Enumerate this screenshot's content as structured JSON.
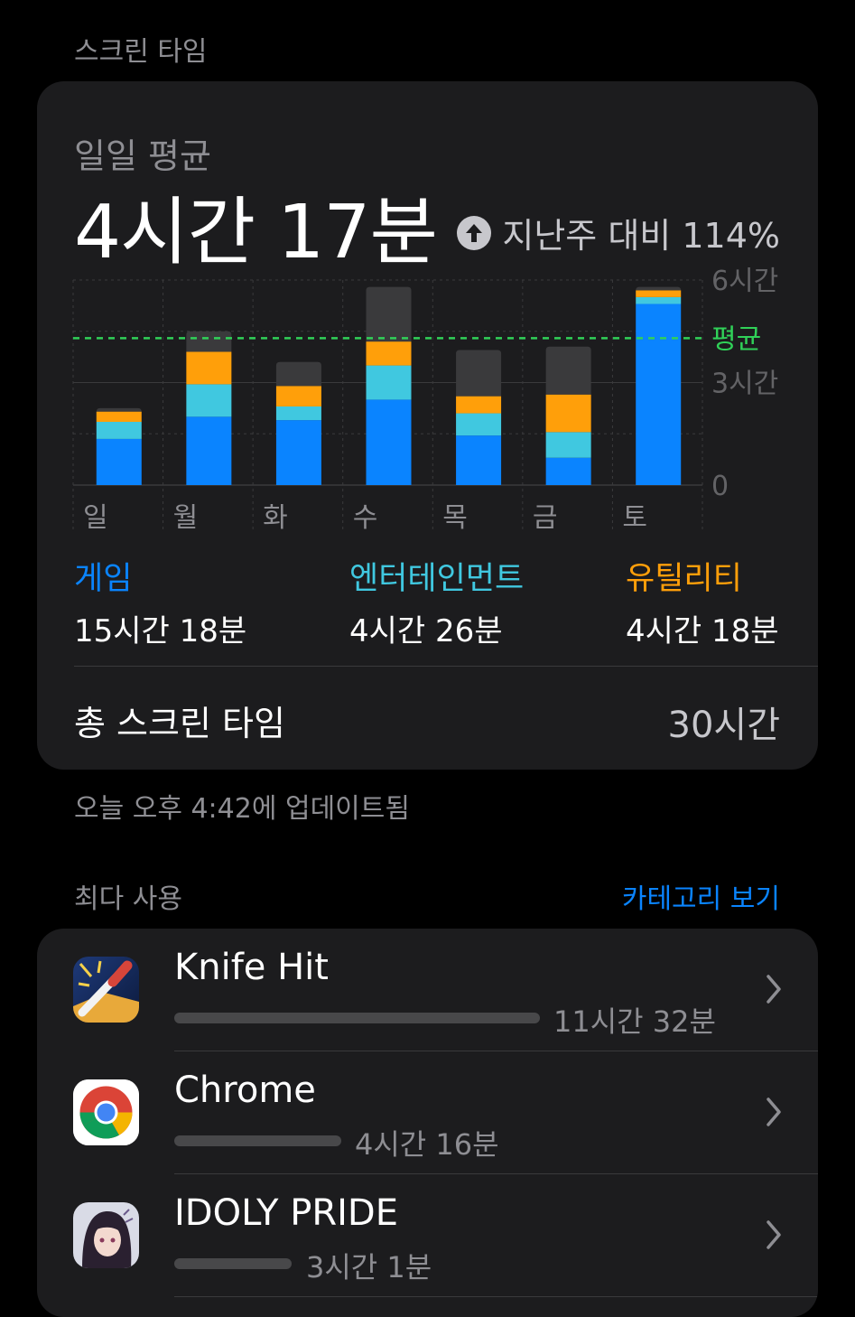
{
  "header": {
    "title": "스크린 타임"
  },
  "summary": {
    "label": "일일 평균",
    "value": "4시간 17분",
    "compare_text": "지난주 대비 114%",
    "compare_icon": "arrow-up-circle-icon"
  },
  "chart_data": {
    "type": "bar",
    "stacked": true,
    "categories": [
      "일",
      "월",
      "화",
      "수",
      "목",
      "금",
      "토"
    ],
    "y_tick_labels": [
      "6시간",
      "3시간",
      "0"
    ],
    "ylim": [
      0,
      6
    ],
    "average_label": "평균",
    "average_value": 4.3,
    "series": [
      {
        "name": "게임",
        "color": "#0a84ff",
        "values": [
          1.35,
          2.0,
          1.9,
          2.5,
          1.45,
          0.8,
          5.3
        ]
      },
      {
        "name": "엔터테인먼트",
        "color": "#40c8e0",
        "values": [
          0.5,
          0.95,
          0.4,
          1.0,
          0.65,
          0.75,
          0.2
        ]
      },
      {
        "name": "유틸리티",
        "color": "#ff9f0a",
        "values": [
          0.3,
          0.95,
          0.6,
          0.7,
          0.5,
          1.1,
          0.2
        ]
      },
      {
        "name": "",
        "color": "#3a3a3c",
        "values": [
          0.1,
          0.6,
          0.7,
          1.6,
          1.35,
          1.4,
          0.1
        ]
      }
    ]
  },
  "legend": [
    {
      "name": "게임",
      "value": "15시간 18분",
      "color": "#0a84ff"
    },
    {
      "name": "엔터테인먼트",
      "value": "4시간 26분",
      "color": "#40c8e0"
    },
    {
      "name": "유틸리티",
      "value": "4시간 18분",
      "color": "#ff9f0a"
    }
  ],
  "total": {
    "label": "총 스크린 타임",
    "value": "30시간"
  },
  "updated": "오늘 오후 4:42에 업데이트됨",
  "most_used": {
    "title": "최다 사용",
    "view_categories": "카테고리 보기",
    "apps": [
      {
        "name": "Knife Hit",
        "usage": "11시간 32분",
        "fraction": 1.0,
        "icon": "knife-hit-icon"
      },
      {
        "name": "Chrome",
        "usage": "4시간 16분",
        "fraction": 0.37,
        "icon": "chrome-icon"
      },
      {
        "name": "IDOLY PRIDE",
        "usage": "3시간 1분",
        "fraction": 0.26,
        "icon": "idoly-pride-icon"
      }
    ]
  }
}
